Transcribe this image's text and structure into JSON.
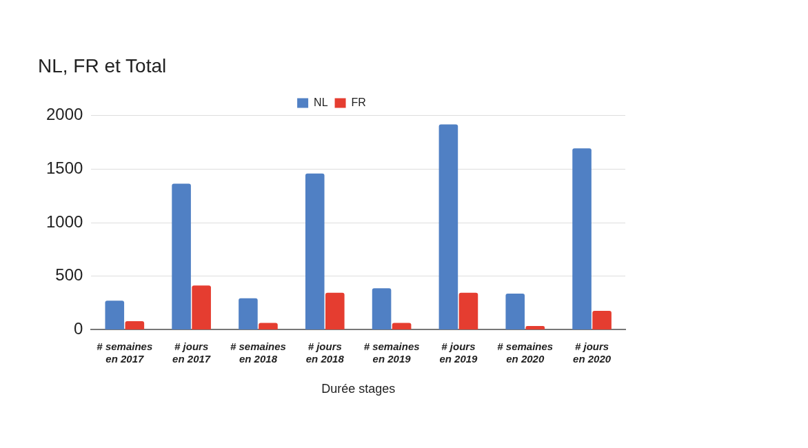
{
  "chart_data": {
    "type": "bar",
    "title": "NL, FR et Total",
    "xlabel": "Durée stages",
    "categories": [
      "# semaines en 2017",
      "# jours en 2017",
      "# semaines en 2018",
      "# jours en 2018",
      "# semaines en 2019",
      "# jours en 2019",
      "# semaines en 2020",
      "# jours en 2020"
    ],
    "series": [
      {
        "name": "NL",
        "color": "#5080c4",
        "values": [
          272,
          1364,
          294,
          1459,
          387,
          1917,
          337,
          1693
        ]
      },
      {
        "name": "FR",
        "color": "#e53d30",
        "values": [
          80,
          413,
          63,
          345,
          63,
          345,
          35,
          176
        ]
      }
    ],
    "ylim": [
      0,
      2000
    ],
    "yticks": [
      0,
      500,
      1000,
      1500,
      2000
    ],
    "grid": "y",
    "legend": "top"
  }
}
